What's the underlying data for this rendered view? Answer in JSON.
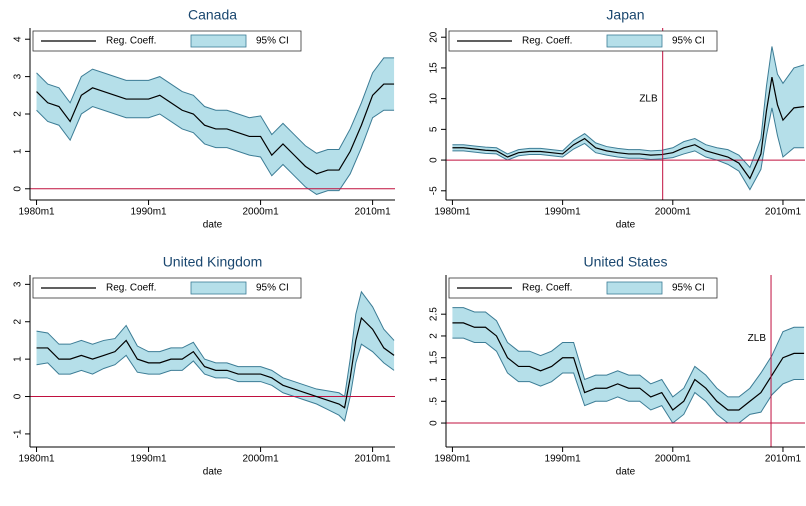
{
  "chart_data": [
    {
      "type": "line",
      "title": "Canada",
      "xlabel": "date",
      "x": [
        "1980m1",
        "1981m1",
        "1982m1",
        "1983m1",
        "1984m1",
        "1985m1",
        "1986m1",
        "1987m1",
        "1988m1",
        "1989m1",
        "1990m1",
        "1991m1",
        "1992m1",
        "1993m1",
        "1994m1",
        "1995m1",
        "1996m1",
        "1997m1",
        "1998m1",
        "1999m1",
        "2000m1",
        "2001m1",
        "2002m1",
        "2003m1",
        "2004m1",
        "2005m1",
        "2006m1",
        "2007m1",
        "2008m1",
        "2009m1",
        "2010m1",
        "2011m1",
        "2011m12"
      ],
      "xlim": [
        "1979m6",
        "2012m1"
      ],
      "xticks": [
        "1980m1",
        "1990m1",
        "2000m1",
        "2010m1"
      ],
      "ylim": [
        -0.3,
        4.3
      ],
      "yticks": [
        0,
        1,
        2,
        3,
        4
      ],
      "hline": 0,
      "line_color": "#c0103f",
      "series": [
        {
          "name": "Reg. Coeff.",
          "color": "#000000",
          "values": [
            2.6,
            2.3,
            2.2,
            1.8,
            2.5,
            2.7,
            2.6,
            2.5,
            2.4,
            2.4,
            2.4,
            2.5,
            2.3,
            2.1,
            2.0,
            1.7,
            1.6,
            1.6,
            1.5,
            1.4,
            1.4,
            0.9,
            1.2,
            0.9,
            0.6,
            0.4,
            0.5,
            0.5,
            1.0,
            1.7,
            2.5,
            2.8,
            2.8
          ]
        },
        {
          "name": "95% CI",
          "color": "#b5dfe9",
          "edge": "#3c7c95",
          "upper": [
            3.1,
            2.8,
            2.7,
            2.3,
            3.0,
            3.2,
            3.1,
            3.0,
            2.9,
            2.9,
            2.9,
            3.0,
            2.8,
            2.6,
            2.5,
            2.2,
            2.1,
            2.1,
            2.0,
            1.9,
            1.95,
            1.45,
            1.75,
            1.45,
            1.15,
            0.95,
            1.05,
            1.05,
            1.6,
            2.3,
            3.1,
            3.5,
            3.5
          ],
          "lower": [
            2.1,
            1.8,
            1.7,
            1.3,
            2.0,
            2.2,
            2.1,
            2.0,
            1.9,
            1.9,
            1.9,
            2.0,
            1.8,
            1.6,
            1.5,
            1.2,
            1.1,
            1.1,
            1.0,
            0.9,
            0.85,
            0.35,
            0.65,
            0.35,
            0.05,
            -0.15,
            -0.05,
            -0.05,
            0.4,
            1.1,
            1.9,
            2.1,
            2.1
          ]
        }
      ]
    },
    {
      "type": "line",
      "title": "Japan",
      "xlabel": "date",
      "x": [
        "1980m1",
        "1981m1",
        "1982m1",
        "1983m1",
        "1984m1",
        "1985m1",
        "1986m1",
        "1987m1",
        "1988m1",
        "1989m1",
        "1990m1",
        "1991m1",
        "1992m1",
        "1993m1",
        "1994m1",
        "1995m1",
        "1996m1",
        "1997m1",
        "1998m1",
        "1999m1",
        "2000m1",
        "2001m1",
        "2002m1",
        "2003m1",
        "2004m1",
        "2005m1",
        "2006m1",
        "2007m1",
        "2008m1",
        "2008m7",
        "2009m1",
        "2009m7",
        "2010m1",
        "2011m1",
        "2011m12"
      ],
      "xlim": [
        "1979m6",
        "2012m1"
      ],
      "xticks": [
        "1980m1",
        "1990m1",
        "2000m1",
        "2010m1"
      ],
      "ylim": [
        -6.5,
        21.5
      ],
      "yticks": [
        -5,
        0,
        5,
        10,
        15,
        20
      ],
      "hline": 0,
      "line_color": "#c0103f",
      "annotations": [
        {
          "text": "ZLB",
          "x": "1999m2",
          "y": 10
        }
      ],
      "series": [
        {
          "name": "Reg. Coeff.",
          "color": "#000000",
          "values": [
            2.0,
            2.0,
            1.8,
            1.6,
            1.5,
            0.5,
            1.2,
            1.4,
            1.4,
            1.2,
            1.0,
            2.5,
            3.5,
            2.0,
            1.5,
            1.2,
            1.0,
            1.0,
            0.8,
            0.9,
            1.2,
            2.0,
            2.5,
            1.5,
            1.0,
            0.5,
            -0.5,
            -3.0,
            1.0,
            8.0,
            13.5,
            9.0,
            6.5,
            8.5,
            8.7
          ]
        },
        {
          "name": "95% CI",
          "color": "#b5dfe9",
          "edge": "#3c7c95",
          "upper": [
            2.5,
            2.5,
            2.3,
            2.1,
            2.0,
            1.0,
            1.7,
            1.9,
            1.9,
            1.7,
            1.5,
            3.2,
            4.3,
            2.8,
            2.2,
            1.9,
            1.7,
            1.7,
            1.5,
            1.6,
            2.0,
            3.0,
            3.5,
            2.5,
            2.0,
            1.7,
            0.8,
            -1.2,
            3.5,
            12.0,
            18.5,
            14.0,
            12.5,
            15.0,
            15.5
          ],
          "lower": [
            1.5,
            1.5,
            1.3,
            1.1,
            1.0,
            0.0,
            0.7,
            0.9,
            0.9,
            0.7,
            0.5,
            1.8,
            2.7,
            1.2,
            0.8,
            0.5,
            0.3,
            0.3,
            0.1,
            0.2,
            0.4,
            1.0,
            1.5,
            0.5,
            0.0,
            -0.7,
            -1.8,
            -4.8,
            -1.5,
            4.0,
            8.5,
            4.0,
            0.5,
            2.0,
            2.0
          ]
        }
      ]
    },
    {
      "type": "line",
      "title": "United Kingdom",
      "xlabel": "date",
      "x": [
        "1980m1",
        "1981m1",
        "1982m1",
        "1983m1",
        "1984m1",
        "1985m1",
        "1986m1",
        "1987m1",
        "1988m1",
        "1989m1",
        "1990m1",
        "1991m1",
        "1992m1",
        "1993m1",
        "1994m1",
        "1995m1",
        "1996m1",
        "1997m1",
        "1998m1",
        "1999m1",
        "2000m1",
        "2001m1",
        "2002m1",
        "2003m1",
        "2004m1",
        "2005m1",
        "2006m1",
        "2007m1",
        "2007m7",
        "2008m1",
        "2008m7",
        "2009m1",
        "2010m1",
        "2011m1",
        "2011m12"
      ],
      "xlim": [
        "1979m6",
        "2012m1"
      ],
      "xticks": [
        "1980m1",
        "1990m1",
        "2000m1",
        "2010m1"
      ],
      "ylim": [
        -1.35,
        3.25
      ],
      "yticks": [
        -1,
        0,
        1,
        2,
        3
      ],
      "hline": 0,
      "line_color": "#c0103f",
      "series": [
        {
          "name": "Reg. Coeff.",
          "color": "#000000",
          "values": [
            1.3,
            1.3,
            1.0,
            1.0,
            1.1,
            1.0,
            1.1,
            1.2,
            1.5,
            1.0,
            0.9,
            0.9,
            1.0,
            1.0,
            1.2,
            0.8,
            0.7,
            0.7,
            0.6,
            0.6,
            0.6,
            0.5,
            0.3,
            0.2,
            0.1,
            0.0,
            -0.1,
            -0.2,
            -0.3,
            0.5,
            1.5,
            2.1,
            1.8,
            1.3,
            1.1
          ]
        },
        {
          "name": "95% CI",
          "color": "#b5dfe9",
          "edge": "#3c7c95",
          "upper": [
            1.75,
            1.7,
            1.4,
            1.4,
            1.5,
            1.4,
            1.5,
            1.55,
            1.9,
            1.35,
            1.2,
            1.2,
            1.3,
            1.3,
            1.45,
            1.0,
            0.9,
            0.9,
            0.8,
            0.8,
            0.8,
            0.7,
            0.5,
            0.4,
            0.3,
            0.2,
            0.15,
            0.1,
            0.0,
            1.0,
            2.2,
            2.8,
            2.4,
            1.8,
            1.5
          ],
          "lower": [
            0.85,
            0.9,
            0.6,
            0.6,
            0.7,
            0.6,
            0.75,
            0.85,
            1.1,
            0.65,
            0.6,
            0.6,
            0.7,
            0.7,
            0.95,
            0.6,
            0.5,
            0.5,
            0.4,
            0.4,
            0.4,
            0.3,
            0.1,
            0.0,
            -0.1,
            -0.2,
            -0.35,
            -0.5,
            -0.65,
            0.0,
            0.9,
            1.4,
            1.2,
            0.9,
            0.7
          ]
        }
      ]
    },
    {
      "type": "line",
      "title": "United States",
      "xlabel": "date",
      "x": [
        "1980m1",
        "1981m1",
        "1982m1",
        "1983m1",
        "1984m1",
        "1985m1",
        "1986m1",
        "1987m1",
        "1988m1",
        "1989m1",
        "1990m1",
        "1991m1",
        "1992m1",
        "1993m1",
        "1994m1",
        "1995m1",
        "1996m1",
        "1997m1",
        "1998m1",
        "1999m1",
        "2000m1",
        "2001m1",
        "2002m1",
        "2003m1",
        "2004m1",
        "2005m1",
        "2006m1",
        "2007m1",
        "2008m1",
        "2009m1",
        "2010m1",
        "2011m1",
        "2011m12"
      ],
      "xlim": [
        "1979m6",
        "2012m1"
      ],
      "xticks": [
        "1980m1",
        "1990m1",
        "2000m1",
        "2010m1"
      ],
      "ylim": [
        -0.55,
        3.4
      ],
      "yticks": [
        0,
        {
          "value": 0.5,
          "label": ".5"
        },
        1,
        1.5,
        2,
        2.5
      ],
      "hline": 0,
      "line_color": "#c0103f",
      "annotations": [
        {
          "text": "ZLB",
          "x": "2008m12",
          "y": 1.95
        }
      ],
      "series": [
        {
          "name": "Reg. Coeff.",
          "color": "#000000",
          "values": [
            2.3,
            2.3,
            2.2,
            2.2,
            2.0,
            1.5,
            1.3,
            1.3,
            1.2,
            1.3,
            1.5,
            1.5,
            0.7,
            0.8,
            0.8,
            0.9,
            0.8,
            0.8,
            0.6,
            0.7,
            0.3,
            0.5,
            1.0,
            0.8,
            0.5,
            0.3,
            0.3,
            0.5,
            0.7,
            1.1,
            1.5,
            1.6,
            1.6
          ]
        },
        {
          "name": "95% CI",
          "color": "#b5dfe9",
          "edge": "#3c7c95",
          "upper": [
            2.65,
            2.65,
            2.55,
            2.55,
            2.35,
            1.85,
            1.65,
            1.65,
            1.55,
            1.65,
            1.85,
            1.85,
            1.0,
            1.1,
            1.1,
            1.2,
            1.1,
            1.1,
            0.9,
            1.0,
            0.6,
            0.8,
            1.3,
            1.1,
            0.8,
            0.6,
            0.6,
            0.8,
            1.15,
            1.55,
            2.1,
            2.2,
            2.2
          ],
          "lower": [
            1.95,
            1.95,
            1.85,
            1.85,
            1.65,
            1.15,
            0.95,
            0.95,
            0.85,
            0.95,
            1.15,
            1.15,
            0.4,
            0.5,
            0.5,
            0.6,
            0.5,
            0.5,
            0.3,
            0.4,
            0.0,
            0.2,
            0.7,
            0.5,
            0.2,
            0.0,
            0.0,
            0.2,
            0.25,
            0.65,
            0.9,
            1.0,
            1.0
          ]
        }
      ]
    }
  ]
}
